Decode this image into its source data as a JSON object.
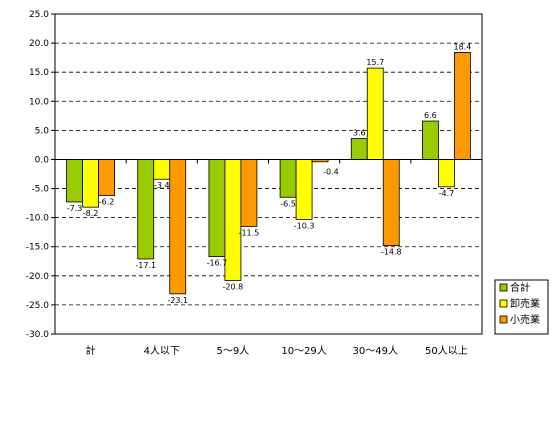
{
  "chart_data": {
    "type": "bar",
    "categories": [
      "計",
      "4人以下",
      "5〜9人",
      "10〜29人",
      "30〜49人",
      "50人以上"
    ],
    "series": [
      {
        "name": "合計",
        "color": "#99cc00",
        "values": [
          -7.3,
          -17.1,
          -16.7,
          -6.5,
          3.6,
          6.6
        ]
      },
      {
        "name": "卸売業",
        "color": "#ffff00",
        "values": [
          -8.2,
          -3.4,
          -20.8,
          -10.3,
          15.7,
          -4.7
        ]
      },
      {
        "name": "小売業",
        "color": "#ff9900",
        "values": [
          -6.2,
          -23.1,
          -11.5,
          -0.4,
          -14.8,
          18.4
        ]
      }
    ],
    "data_labels": [
      [
        "-7.3",
        "-17.1",
        "-16.7",
        "-6.5",
        "3.6",
        "6.6"
      ],
      [
        "-8.2",
        "-3.4",
        "-20.8",
        "-10.3",
        "15.7",
        "-4.7"
      ],
      [
        "-6.2",
        "-23.1",
        "-11.5",
        "-0.4",
        "-14.8",
        "18.4"
      ]
    ],
    "y_ticks": [
      "25.0",
      "20.0",
      "15.0",
      "10.0",
      "5.0",
      "0.0",
      "-5.0",
      "-10.0",
      "-15.0",
      "-20.0",
      "-25.0",
      "-30.0"
    ],
    "ylim": [
      -30,
      25
    ],
    "grid": "dashed horizontal",
    "legend_position": "right"
  }
}
